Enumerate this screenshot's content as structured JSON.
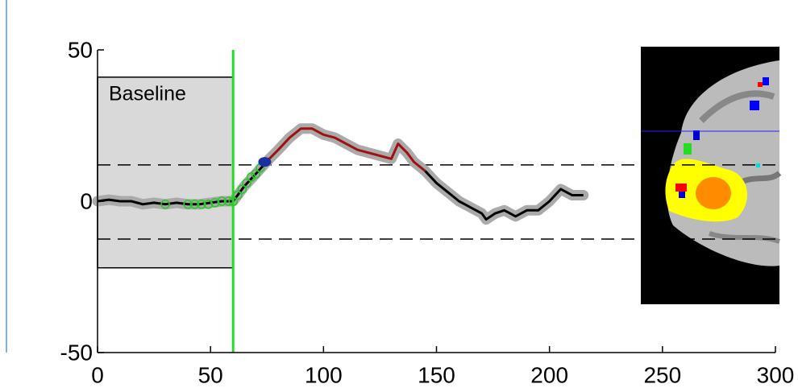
{
  "chart_data": {
    "type": "line",
    "x": [
      0,
      5,
      10,
      15,
      20,
      25,
      30,
      35,
      40,
      45,
      50,
      55,
      60,
      65,
      70,
      76,
      80,
      85,
      90,
      95,
      100,
      105,
      110,
      115,
      120,
      125,
      130,
      133,
      137,
      140,
      145,
      150,
      155,
      160,
      165,
      170,
      172,
      176,
      180,
      185,
      190,
      195,
      200,
      205,
      210,
      215
    ],
    "series": [
      {
        "color": "#000000",
        "values": [
          0,
          0.5,
          0,
          0,
          -1,
          -0.5,
          -1,
          -0.5,
          -1,
          -1,
          -0.5,
          0,
          0,
          5,
          9,
          14,
          null,
          null,
          null,
          null,
          null,
          null,
          null,
          null,
          null,
          null,
          null,
          null,
          null,
          null,
          10,
          6,
          3,
          0,
          -2,
          -4,
          -6,
          -4,
          -3,
          -5,
          -3,
          -3,
          0,
          4,
          2,
          2
        ]
      },
      {
        "color": "#a01010",
        "values": [
          null,
          null,
          null,
          null,
          null,
          null,
          null,
          null,
          null,
          null,
          null,
          null,
          null,
          null,
          null,
          14,
          17,
          21,
          24,
          24,
          22,
          21,
          19,
          17,
          16,
          15,
          14,
          19,
          16,
          13,
          10,
          null,
          null,
          null,
          null,
          null,
          null,
          null,
          null,
          null,
          null,
          null,
          null,
          null,
          null,
          null
        ]
      }
    ],
    "band_color": "#aaaaaa",
    "markers": {
      "color": "#22cc22",
      "x": [
        30,
        40,
        43,
        46,
        49,
        52,
        55,
        58,
        60,
        62,
        64,
        66,
        68,
        70,
        72
      ],
      "y": [
        -1,
        -1,
        -1,
        -1,
        -1,
        -0.5,
        0,
        0,
        0,
        2,
        4,
        6,
        8,
        9,
        11
      ]
    },
    "highlight": {
      "color": "#1a2fa0",
      "x": 74,
      "y": 13
    },
    "baseline": {
      "label": "Baseline",
      "x": [
        0,
        60
      ],
      "y": [
        -22,
        41
      ],
      "color": "#d9d9d9"
    },
    "vline": {
      "x": 60,
      "color": "#22dd22"
    },
    "hlines": [
      12,
      -12.5
    ],
    "xlim": [
      0,
      300
    ],
    "xticks": [
      0,
      50,
      100,
      150,
      200,
      250,
      300
    ],
    "ylim": [
      -50,
      50
    ],
    "yticks": [
      -50,
      0,
      50
    ]
  }
}
